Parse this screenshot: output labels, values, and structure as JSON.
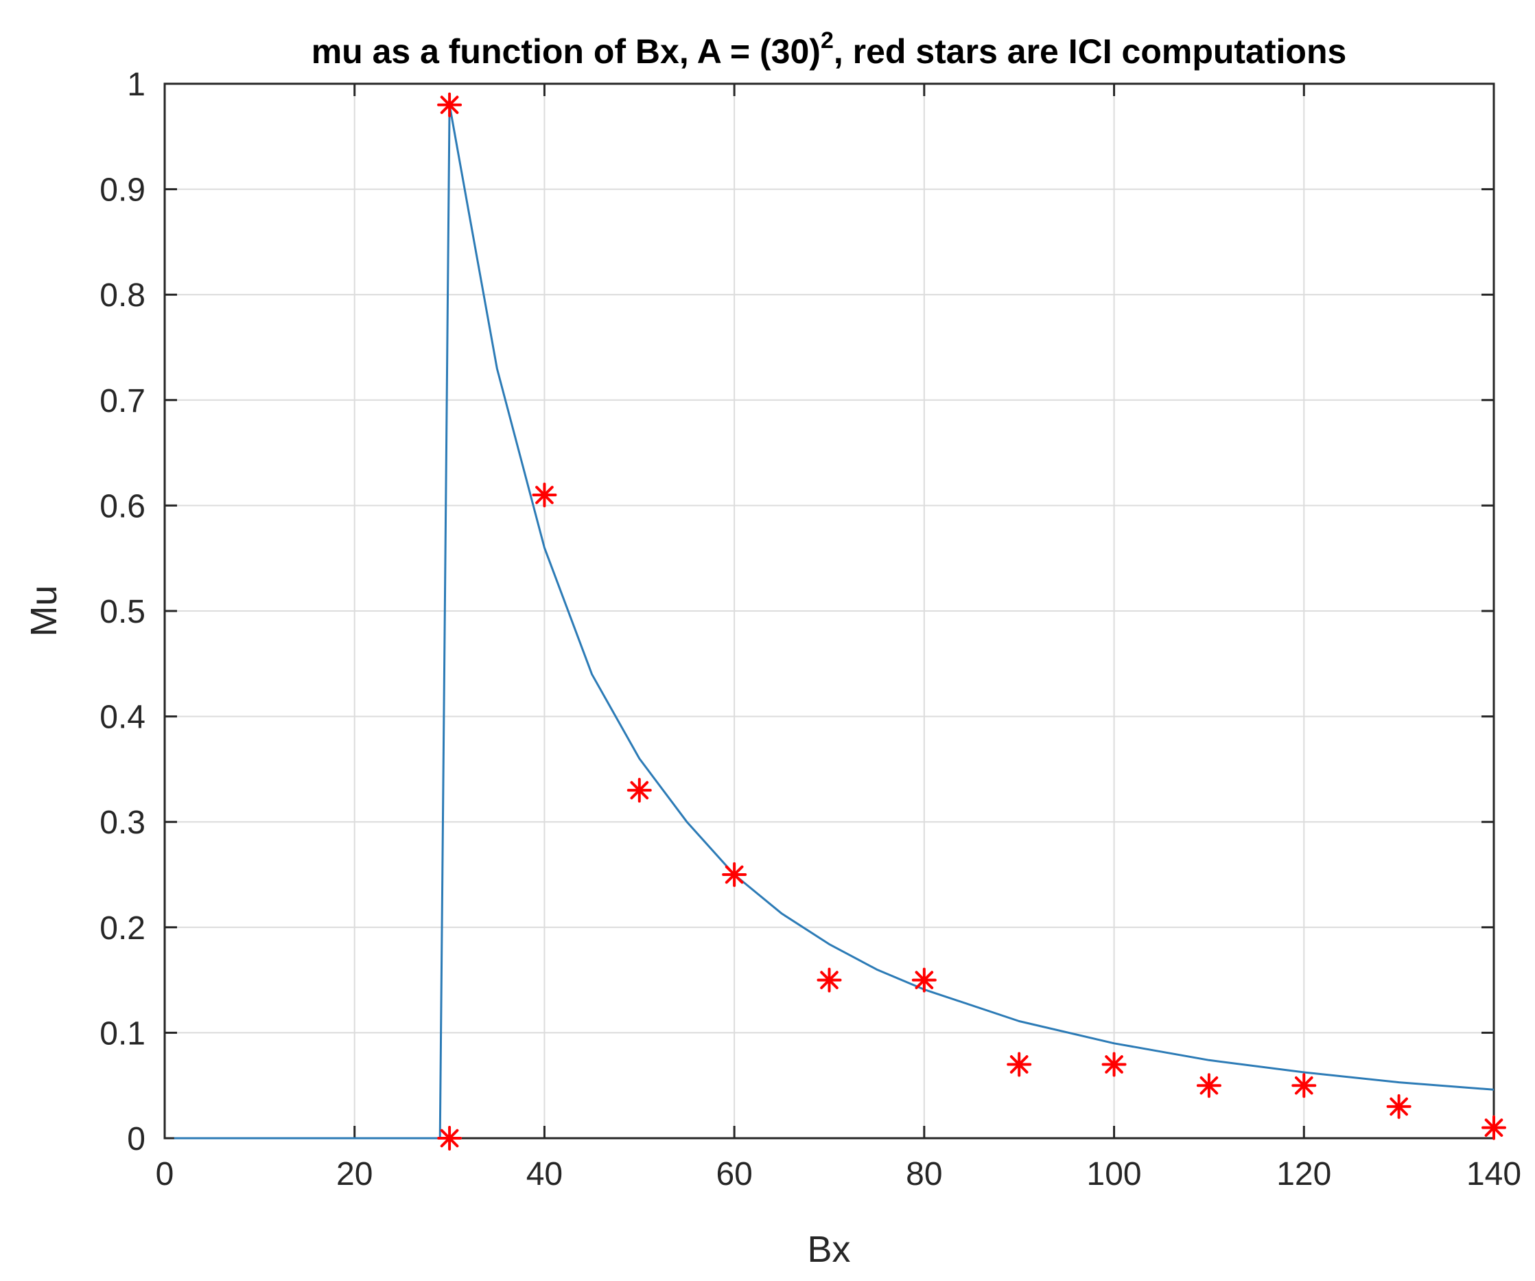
{
  "colors": {
    "curve": "#2c7bb6",
    "markers": "#ff0000",
    "grid": "#dcdcdc",
    "axes": "#262626",
    "background": "#ffffff"
  },
  "chart_data": {
    "type": "line",
    "title_main": "mu as a function of Bx, A = (30)",
    "title_sup": "2",
    "title_rest": ", red stars are ICI computations",
    "xlabel": "Bx",
    "ylabel": "Mu",
    "xlim": [
      0,
      140
    ],
    "ylim": [
      0,
      1
    ],
    "grid": true,
    "xticks": [
      0,
      20,
      40,
      60,
      80,
      100,
      120,
      140
    ],
    "xtick_labels": [
      "0",
      "20",
      "40",
      "60",
      "80",
      "100",
      "120",
      "140"
    ],
    "yticks": [
      0,
      0.1,
      0.2,
      0.3,
      0.4,
      0.5,
      0.6,
      0.7,
      0.8,
      0.9,
      1
    ],
    "ytick_labels": [
      "0",
      "0.1",
      "0.2",
      "0.3",
      "0.4",
      "0.5",
      "0.6",
      "0.7",
      "0.8",
      "0.9",
      "1"
    ],
    "series": [
      {
        "style": "line",
        "x": [
          1,
          29,
          29,
          30,
          32,
          35,
          40,
          45,
          50,
          55,
          60,
          65,
          70,
          75,
          80,
          90,
          100,
          110,
          120,
          130,
          140
        ],
        "y": [
          0,
          0,
          0,
          0.98,
          0.88,
          0.73,
          0.56,
          0.44,
          0.36,
          0.3,
          0.25,
          0.213,
          0.184,
          0.16,
          0.141,
          0.111,
          0.09,
          0.074,
          0.0625,
          0.053,
          0.046
        ]
      },
      {
        "style": "markers",
        "marker": "asterisk",
        "x": [
          30,
          30,
          40,
          50,
          60,
          70,
          80,
          90,
          100,
          110,
          120,
          130,
          140
        ],
        "y": [
          0.98,
          0,
          0.61,
          0.33,
          0.25,
          0.15,
          0.15,
          0.07,
          0.07,
          0.05,
          0.05,
          0.03,
          0.01
        ]
      }
    ]
  }
}
